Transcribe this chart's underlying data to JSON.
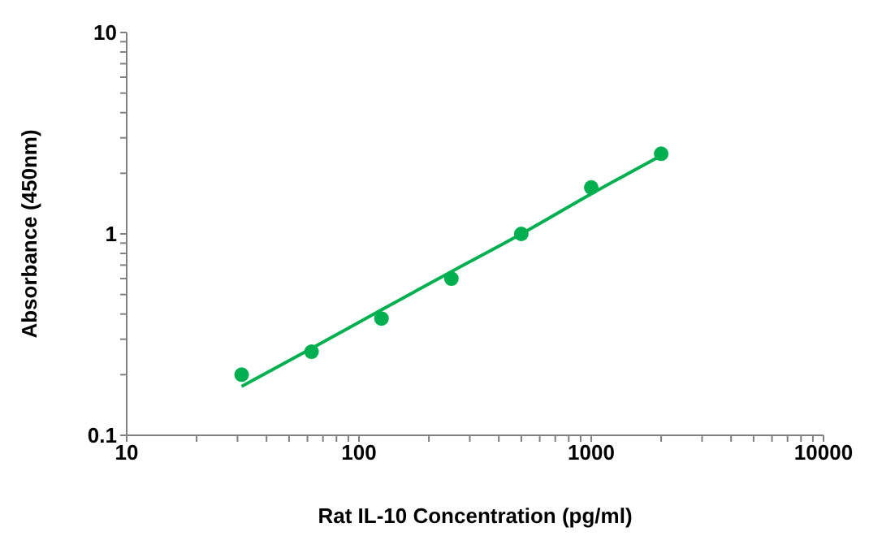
{
  "chart_data": {
    "type": "scatter",
    "xlabel": "Rat IL-10 Concentration (pg/ml)",
    "ylabel": "Absorbance (450nm)",
    "log": "xy",
    "grid": false,
    "legend": false,
    "marker": "circle",
    "xlim": [
      10,
      10000
    ],
    "ylim": [
      0.1,
      10
    ],
    "xticks": [
      10,
      {
        "value": 20,
        "label": null
      },
      {
        "value": 30,
        "label": null
      },
      {
        "value": 40,
        "label": null
      },
      {
        "value": 50,
        "label": null
      },
      {
        "value": 60,
        "label": null
      },
      {
        "value": 70,
        "label": null
      },
      {
        "value": 80,
        "label": null
      },
      {
        "value": 90,
        "label": null
      },
      100,
      {
        "value": 200,
        "label": null
      },
      {
        "value": 300,
        "label": null
      },
      {
        "value": 400,
        "label": null
      },
      {
        "value": 500,
        "label": null
      },
      {
        "value": 600,
        "label": null
      },
      {
        "value": 700,
        "label": null
      },
      {
        "value": 800,
        "label": null
      },
      {
        "value": 900,
        "label": null
      },
      1000,
      {
        "value": 2000,
        "label": null
      },
      {
        "value": 3000,
        "label": null
      },
      {
        "value": 4000,
        "label": null
      },
      {
        "value": 5000,
        "label": null
      },
      {
        "value": 6000,
        "label": null
      },
      {
        "value": 7000,
        "label": null
      },
      {
        "value": 8000,
        "label": null
      },
      {
        "value": 9000,
        "label": null
      },
      10000
    ],
    "yticks": [
      0.1,
      {
        "value": 0.2,
        "label": null
      },
      {
        "value": 0.3,
        "label": null
      },
      {
        "value": 0.4,
        "label": null
      },
      {
        "value": 0.5,
        "label": null
      },
      {
        "value": 0.6,
        "label": null
      },
      {
        "value": 0.7,
        "label": null
      },
      {
        "value": 0.8,
        "label": null
      },
      {
        "value": 0.9,
        "label": null
      },
      1,
      {
        "value": 2,
        "label": null
      },
      {
        "value": 3,
        "label": null
      },
      {
        "value": 4,
        "label": null
      },
      {
        "value": 5,
        "label": null
      },
      {
        "value": 6,
        "label": null
      },
      {
        "value": 7,
        "label": null
      },
      {
        "value": 8,
        "label": null
      },
      {
        "value": 9,
        "label": null
      },
      10
    ],
    "series": [
      {
        "color": "#00b050",
        "x": [
          31.25,
          62.5,
          125,
          250,
          500,
          1000,
          2000
        ],
        "values": [
          0.2,
          0.26,
          0.38,
          0.6,
          1.0,
          1.7,
          2.5
        ]
      },
      {
        "type": "line",
        "color": "#00b050",
        "marker": "none",
        "x": [
          31.25,
          62.5,
          125,
          250,
          500,
          1000,
          2000
        ],
        "values": [
          0.175,
          0.27,
          0.42,
          0.65,
          1.0,
          1.58,
          2.45
        ]
      }
    ]
  }
}
